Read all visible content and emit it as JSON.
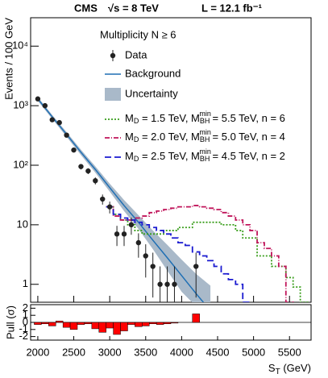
{
  "chart_data": [
    {
      "type": "line",
      "title_parts": [
        "CMS",
        "√s = 8 TeV",
        "L = 12.1 fb⁻¹"
      ],
      "annotation": "Multiplicity N ≥ 6",
      "ylabel": "Events / 100 GeV",
      "xlabel_parts": [
        "S",
        "T",
        " (GeV)"
      ],
      "xlim": [
        1900,
        5800
      ],
      "xticks": [
        2000,
        2500,
        3000,
        3500,
        4000,
        4500,
        5000,
        5500
      ],
      "ylim": [
        0.5,
        30000
      ],
      "log_y": true,
      "yticks": [
        1,
        10,
        {
          "value": 100,
          "label": "10²"
        },
        {
          "value": 1000,
          "label": "10³"
        },
        {
          "value": 10000,
          "label": "10⁴"
        }
      ],
      "data": {
        "name": "Data",
        "color": "#222222",
        "x": [
          2000,
          2100,
          2200,
          2300,
          2400,
          2500,
          2600,
          2700,
          2800,
          2900,
          3000,
          3100,
          3200,
          3300,
          3400,
          3500,
          3600,
          3700,
          3800,
          3900,
          4200
        ],
        "values": [
          1300,
          1000,
          580,
          520,
          320,
          180,
          95,
          80,
          55,
          27,
          20,
          7,
          7,
          10,
          5,
          3,
          2,
          1,
          1,
          1,
          2
        ],
        "errors": [
          36,
          32,
          24,
          23,
          18,
          13,
          10,
          9,
          7.4,
          5.2,
          4.5,
          2.6,
          2.6,
          3.2,
          2.2,
          1.7,
          1.4,
          1,
          1,
          1,
          1.4
        ]
      },
      "background": {
        "name": "Background",
        "color": "#1f6fb4",
        "x": [
          2000,
          2200,
          2400,
          2600,
          2800,
          3000,
          3200,
          3400,
          3600,
          3800,
          4000,
          4200,
          4400
        ],
        "values": [
          1300,
          650,
          330,
          165,
          85,
          42,
          21,
          11,
          5.5,
          2.8,
          1.4,
          0.7,
          0.36
        ]
      },
      "uncertainty": {
        "name": "Uncertainty",
        "color": "#a9b9c9",
        "x": [
          2000,
          2200,
          2400,
          2600,
          2800,
          3000,
          3200,
          3400,
          3600,
          3800,
          4000,
          4200,
          4400
        ],
        "lower": [
          1200,
          600,
          300,
          148,
          75,
          36,
          17,
          8.5,
          3.9,
          1.7,
          0.75,
          0.32,
          0.13
        ],
        "upper": [
          1400,
          700,
          360,
          182,
          96,
          49,
          26,
          14.5,
          8,
          4.6,
          2.6,
          1.5,
          0.95
        ]
      },
      "series": [
        {
          "name_parts": [
            "M",
            "D",
            " = 1.5 TeV, M",
            "BH",
            "min",
            " = 5.5 TeV, n = 6"
          ],
          "color": "#3a9e1c",
          "dash": "2,2",
          "x": [
            3000,
            3100,
            3200,
            3300,
            3400,
            3500,
            3600,
            3700,
            3800,
            3900,
            4000,
            4100,
            4200,
            4300,
            4400,
            4500,
            4600,
            4700,
            4800,
            4900,
            5000,
            5100,
            5200,
            5300,
            5400,
            5500,
            5600,
            5700
          ],
          "values": [
            20,
            15,
            12,
            10,
            8,
            7,
            7,
            7,
            8,
            8,
            9,
            9,
            11,
            11,
            11,
            11,
            10,
            10,
            8,
            6,
            6,
            3,
            3,
            2,
            2,
            1.3,
            0.9,
            0.5
          ]
        },
        {
          "name_parts": [
            "M",
            "D",
            " = 2.0 TeV, M",
            "BH",
            "min",
            " = 5.0 TeV, n = 4"
          ],
          "color": "#c0145a",
          "dash": "6,2,1,2",
          "x": [
            3000,
            3100,
            3200,
            3300,
            3400,
            3500,
            3600,
            3700,
            3800,
            3900,
            4000,
            4100,
            4200,
            4300,
            4400,
            4500,
            4600,
            4700,
            4800,
            4900,
            5000,
            5100,
            5200,
            5300,
            5400,
            5500
          ],
          "values": [
            20,
            14,
            12,
            12,
            13,
            14,
            16,
            17,
            18,
            19,
            20,
            20,
            21,
            20,
            19,
            18,
            16,
            14,
            12,
            10,
            8,
            5,
            4,
            3,
            2,
            0.5
          ]
        },
        {
          "name_parts": [
            "M",
            "D",
            " = 2.5 TeV, M",
            "BH",
            "min",
            " = 4.5 TeV, n = 2"
          ],
          "color": "#1a1ad0",
          "dash": "8,4",
          "x": [
            3000,
            3100,
            3200,
            3300,
            3400,
            3500,
            3600,
            3700,
            3800,
            3900,
            4000,
            4100,
            4200,
            4300,
            4400,
            4500,
            4600,
            4700,
            4800,
            4900
          ],
          "values": [
            20,
            15,
            13,
            12,
            11,
            10,
            9,
            8,
            7,
            6,
            5,
            4.5,
            3.5,
            3,
            2.5,
            2,
            1.5,
            1.2,
            1,
            0.5
          ]
        }
      ]
    },
    {
      "type": "bar",
      "ylabel": "Pull (σ)",
      "color": "#ff0000",
      "ylim": [
        -2.5,
        2.5
      ],
      "yticks": [
        -2,
        -1,
        0,
        1,
        2
      ],
      "x": [
        2000,
        2100,
        2200,
        2300,
        2400,
        2500,
        2600,
        2700,
        2800,
        2900,
        3000,
        3100,
        3200,
        3300,
        3400,
        3500,
        3600,
        3700,
        3800,
        3900,
        4200
      ],
      "values": [
        -0.3,
        -0.2,
        -0.5,
        0.2,
        -0.7,
        -1.0,
        -0.3,
        -0.2,
        -0.9,
        -1.4,
        -0.8,
        -1.7,
        -1.2,
        -0.3,
        -0.6,
        -0.5,
        -0.2,
        -0.3,
        -0.2,
        -0.1,
        1.2
      ]
    }
  ]
}
